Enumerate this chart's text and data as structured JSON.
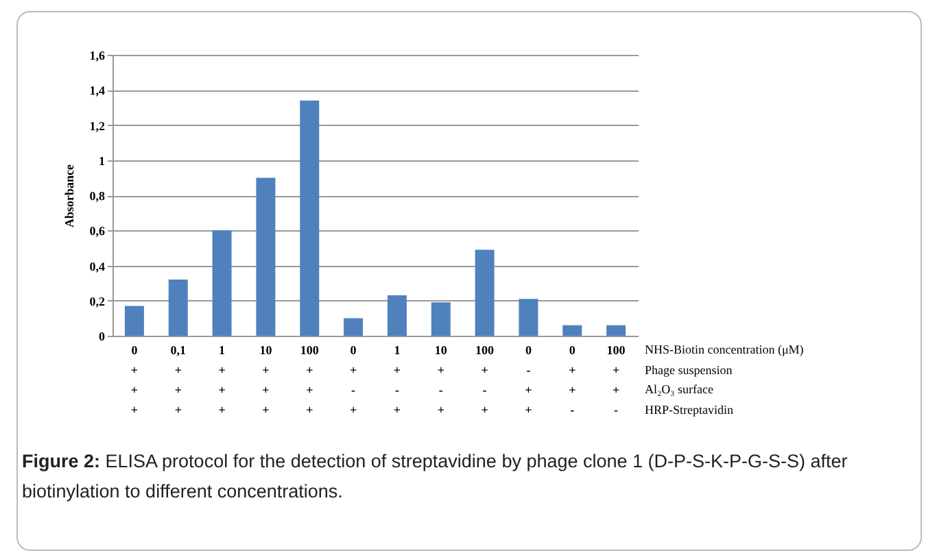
{
  "chart_data": {
    "type": "bar",
    "ylabel": "Absorbance",
    "categories": [
      "0\n+\n+\n+",
      "0,1\n+\n+\n+",
      "1\n+\n+\n+",
      "10\n+\n+\n+",
      "100\n+\n+\n+",
      "0\n+\n-\n+",
      "1\n+\n-\n+",
      "10\n+\n-\n+",
      "100\n+\n-\n+",
      "0\n-\n+\n+",
      "0\n+\n+\n-",
      "100\n+\n+\n-"
    ],
    "values": [
      0.17,
      0.32,
      0.6,
      0.9,
      1.34,
      0.1,
      0.23,
      0.19,
      0.49,
      0.21,
      0.06,
      0.06
    ],
    "color": "#4f81bd",
    "ylim": [
      0,
      1.6
    ],
    "yticks": [
      0,
      {
        "value": 0.2,
        "label": "0,2"
      },
      {
        "value": 0.4,
        "label": "0,4"
      },
      {
        "value": 0.6,
        "label": "0,6"
      },
      {
        "value": 0.8,
        "label": "0,8"
      },
      1,
      {
        "value": 1.2,
        "label": "1,2"
      },
      {
        "value": 1.4,
        "label": "1,4"
      },
      {
        "value": 1.6,
        "label": "1,6"
      }
    ],
    "grid": "y",
    "annotations": [
      "NHS-Biotin concentration (μM)",
      "Phage suspension",
      "Al₂O₃ surface",
      "HRP-Streptavidin",
      "Figure 2: ELISA protocol for the detection of streptavidine by phage clone 1 (D-P-S-K-P-G-S-S) after biotinylation to different concentrations."
    ]
  }
}
